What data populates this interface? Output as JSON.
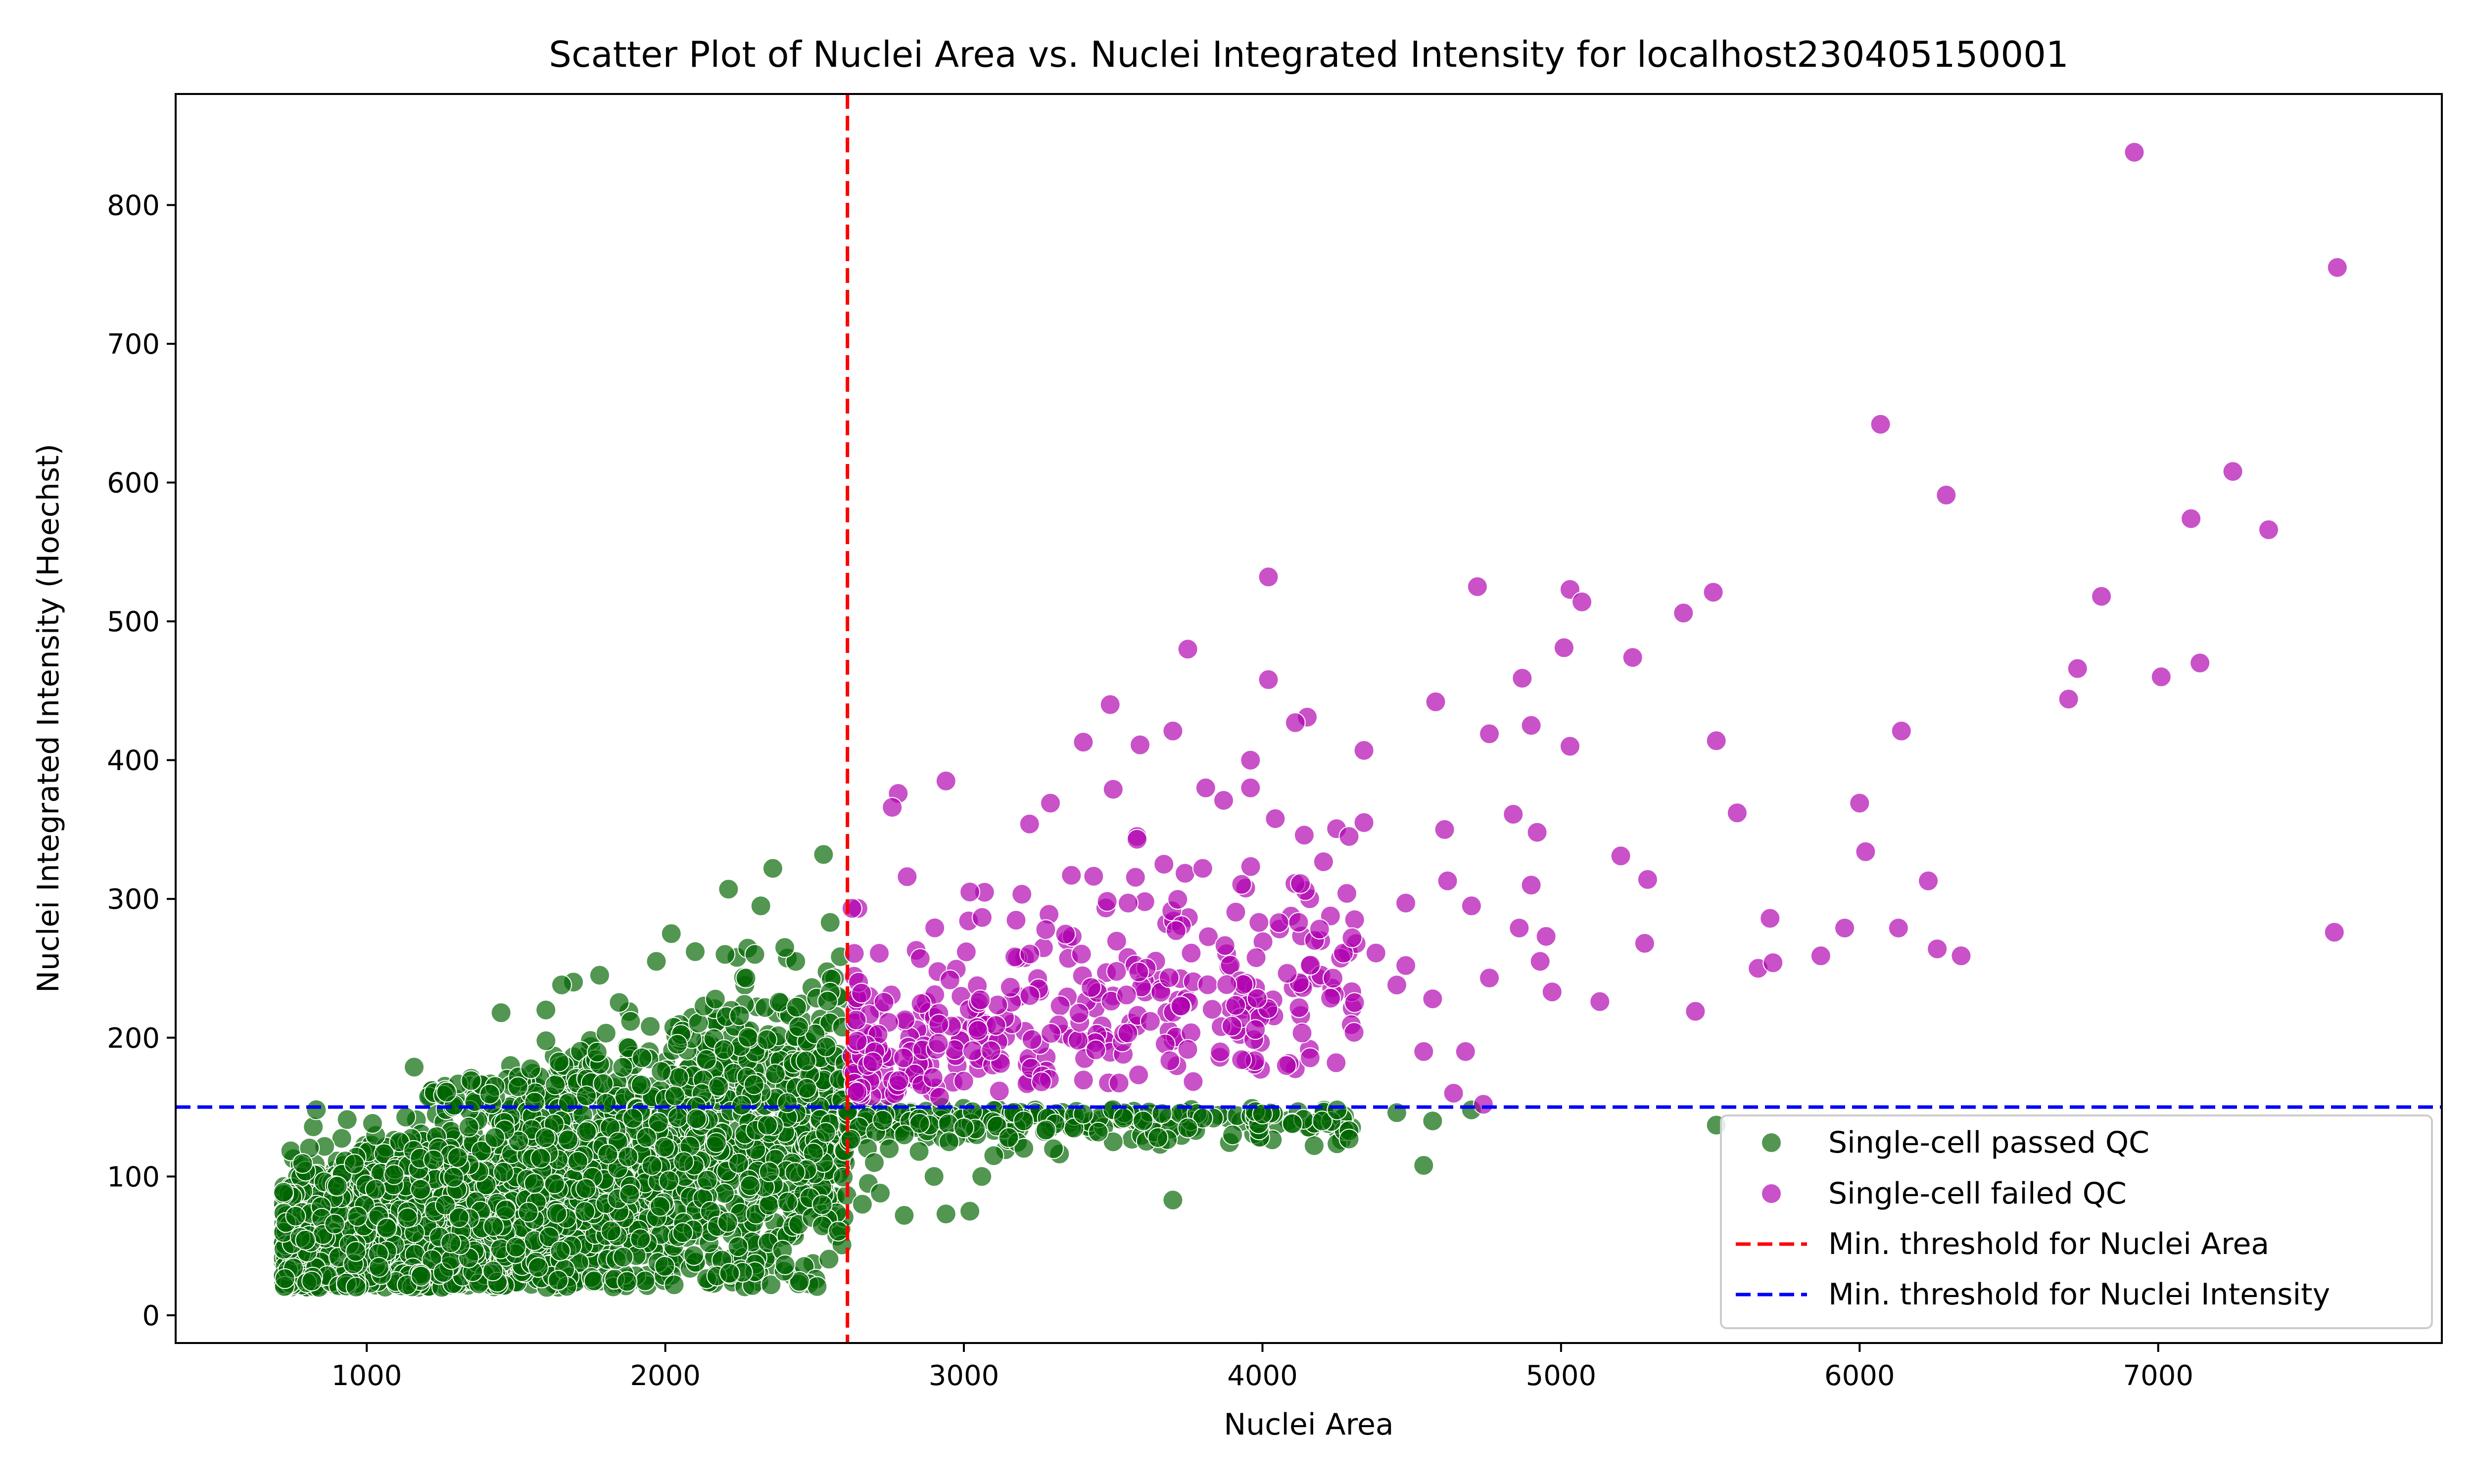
{
  "chart_data": {
    "type": "scatter",
    "title": "Scatter Plot of Nuclei Area vs. Nuclei Integrated Intensity for localhost230405150001",
    "xlabel": "Nuclei Area",
    "ylabel": "Nuclei Integrated Intensity (Hoechst)",
    "xlim": [
      360,
      7950
    ],
    "ylim": [
      -20,
      880
    ],
    "xticks": [
      1000,
      2000,
      3000,
      4000,
      5000,
      6000,
      7000
    ],
    "yticks": [
      0,
      100,
      200,
      300,
      400,
      500,
      600,
      700,
      800
    ],
    "grid": false,
    "legend_position": "lower-right",
    "thresholds": {
      "area": {
        "value": 2610,
        "label": "Min. threshold for Nuclei Area",
        "color": "#ff0000"
      },
      "intensity": {
        "value": 150,
        "label": "Min. threshold for Nuclei Intensity",
        "color": "#0000ff"
      }
    },
    "series": [
      {
        "name": "Single-cell passed QC",
        "color": "#006400",
        "generated_cloud": {
          "x_range": [
            720,
            2610
          ],
          "note": "dense cloud of ~3000 nuclei below area threshold"
        },
        "points": [
          [
            2020,
            275
          ],
          [
            2360,
            322
          ],
          [
            2530,
            332
          ],
          [
            2320,
            295
          ],
          [
            1780,
            245
          ],
          [
            1450,
            218
          ],
          [
            1600,
            220
          ],
          [
            2400,
            265
          ],
          [
            2300,
            260
          ],
          [
            1970,
            255
          ],
          [
            2100,
            262
          ],
          [
            2200,
            260
          ],
          [
            3060,
            100
          ],
          [
            3700,
            83
          ],
          [
            4540,
            108
          ],
          [
            2940,
            73
          ],
          [
            3020,
            75
          ],
          [
            2800,
            72
          ],
          [
            4450,
            146
          ],
          [
            4570,
            140
          ],
          [
            4700,
            148
          ],
          [
            5520,
            137
          ],
          [
            4290,
            133
          ],
          [
            4290,
            127
          ],
          [
            4200,
            140
          ],
          [
            4000,
            145
          ],
          [
            3800,
            142
          ],
          [
            3600,
            140
          ],
          [
            3400,
            145
          ],
          [
            3200,
            140
          ],
          [
            3000,
            135
          ],
          [
            2800,
            130
          ],
          [
            2750,
            120
          ],
          [
            2700,
            110
          ],
          [
            2900,
            100
          ],
          [
            3100,
            115
          ],
          [
            3300,
            120
          ],
          [
            3500,
            125
          ],
          [
            3900,
            130
          ],
          [
            4100,
            138
          ],
          [
            4250,
            148
          ],
          [
            3750,
            135
          ],
          [
            3650,
            128
          ],
          [
            3450,
            132
          ],
          [
            3150,
            128
          ],
          [
            2950,
            125
          ],
          [
            2850,
            118
          ],
          [
            2680,
            95
          ],
          [
            2720,
            88
          ],
          [
            2660,
            80
          ]
        ]
      },
      {
        "name": "Single-cell failed QC",
        "color": "#b000b0",
        "generated_cloud": {
          "x_range": [
            2620,
            4300
          ],
          "note": "dense cloud of ~350 nuclei above both thresholds"
        },
        "points": [
          [
            6920,
            838
          ],
          [
            7600,
            755
          ],
          [
            6070,
            642
          ],
          [
            6290,
            591
          ],
          [
            7250,
            608
          ],
          [
            7110,
            574
          ],
          [
            7370,
            566
          ],
          [
            4020,
            532
          ],
          [
            4720,
            525
          ],
          [
            5030,
            523
          ],
          [
            5070,
            514
          ],
          [
            5510,
            521
          ],
          [
            6810,
            518
          ],
          [
            5410,
            506
          ],
          [
            3750,
            480
          ],
          [
            5010,
            481
          ],
          [
            5240,
            474
          ],
          [
            7140,
            470
          ],
          [
            6730,
            466
          ],
          [
            7010,
            460
          ],
          [
            4870,
            459
          ],
          [
            4020,
            458
          ],
          [
            6700,
            444
          ],
          [
            4580,
            442
          ],
          [
            3490,
            440
          ],
          [
            4150,
            431
          ],
          [
            4900,
            425
          ],
          [
            4110,
            427
          ],
          [
            6140,
            421
          ],
          [
            3700,
            421
          ],
          [
            4760,
            419
          ],
          [
            5520,
            414
          ],
          [
            3400,
            413
          ],
          [
            3590,
            411
          ],
          [
            5030,
            410
          ],
          [
            4340,
            407
          ],
          [
            3960,
            400
          ],
          [
            2940,
            385
          ],
          [
            3810,
            380
          ],
          [
            3960,
            380
          ],
          [
            2780,
            376
          ],
          [
            3500,
            379
          ],
          [
            3870,
            371
          ],
          [
            6000,
            369
          ],
          [
            2760,
            366
          ],
          [
            3290,
            369
          ],
          [
            5590,
            362
          ],
          [
            4840,
            361
          ],
          [
            4340,
            355
          ],
          [
            3220,
            354
          ],
          [
            4920,
            348
          ],
          [
            3580,
            345
          ],
          [
            4140,
            346
          ],
          [
            4290,
            345
          ],
          [
            4610,
            350
          ],
          [
            3580,
            343
          ],
          [
            5200,
            331
          ],
          [
            6020,
            334
          ],
          [
            3670,
            325
          ],
          [
            3800,
            322
          ],
          [
            4900,
            310
          ],
          [
            5290,
            314
          ],
          [
            3360,
            317
          ],
          [
            2810,
            316
          ],
          [
            4620,
            313
          ],
          [
            6230,
            313
          ],
          [
            3020,
            305
          ],
          [
            3550,
            297
          ],
          [
            4480,
            297
          ],
          [
            4700,
            295
          ],
          [
            4860,
            279
          ],
          [
            5950,
            279
          ],
          [
            6130,
            279
          ],
          [
            5700,
            286
          ],
          [
            4950,
            273
          ],
          [
            5280,
            268
          ],
          [
            6260,
            264
          ],
          [
            5870,
            259
          ],
          [
            6340,
            259
          ],
          [
            5660,
            250
          ],
          [
            5710,
            254
          ],
          [
            7590,
            276
          ],
          [
            4930,
            255
          ],
          [
            5130,
            226
          ],
          [
            5450,
            219
          ],
          [
            4970,
            233
          ],
          [
            4760,
            243
          ],
          [
            4570,
            228
          ],
          [
            4480,
            252
          ],
          [
            4540,
            190
          ],
          [
            4680,
            190
          ],
          [
            4640,
            160
          ],
          [
            4740,
            152
          ],
          [
            4380,
            261
          ],
          [
            4300,
            272
          ],
          [
            4450,
            238
          ]
        ]
      }
    ]
  }
}
